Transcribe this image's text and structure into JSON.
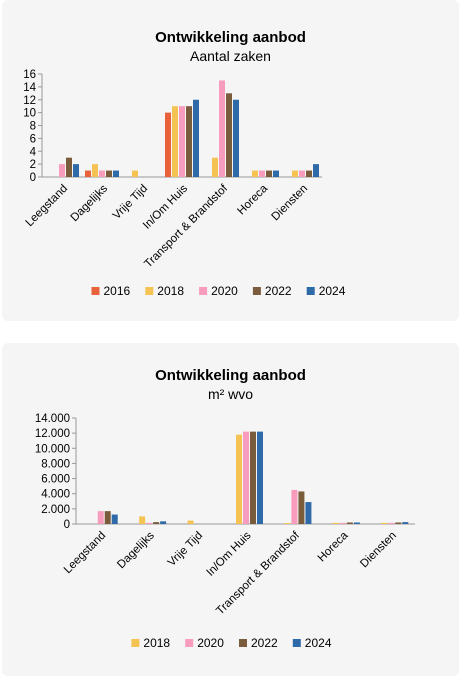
{
  "chart_data": [
    {
      "type": "bar",
      "title": "Ontwikkeling aanbod",
      "subtitle": "Aantal zaken",
      "categories": [
        "Leegstand",
        "Dagelijks",
        "Vrije Tijd",
        "In/Om Huis",
        "Transport & Brandstof",
        "Horeca",
        "Diensten"
      ],
      "series": [
        {
          "name": "2016",
          "color": "#e8613a",
          "values": [
            0,
            1,
            0,
            10,
            0,
            0,
            0
          ]
        },
        {
          "name": "2018",
          "color": "#f5c254",
          "values": [
            0,
            2,
            1,
            11,
            3,
            1,
            1
          ]
        },
        {
          "name": "2020",
          "color": "#f79cbc",
          "values": [
            2,
            1,
            0,
            11,
            15,
            1,
            1
          ]
        },
        {
          "name": "2022",
          "color": "#7a5c3c",
          "values": [
            3,
            1,
            0,
            11,
            13,
            1,
            1
          ]
        },
        {
          "name": "2024",
          "color": "#2e6aa8",
          "values": [
            2,
            1,
            0,
            12,
            12,
            1,
            2
          ]
        }
      ],
      "yticks": [
        "0",
        "2",
        "4",
        "6",
        "8",
        "10",
        "12",
        "14",
        "16"
      ],
      "ylim": [
        0,
        16
      ],
      "grid": false,
      "legend": "bottom"
    },
    {
      "type": "bar",
      "title": "Ontwikkeling aanbod",
      "subtitle": "m² wvo",
      "categories": [
        "Leegstand",
        "Dagelijks",
        "Vrije Tijd",
        "In/Om Huis",
        "Transport & Brandstof",
        "Horeca",
        "Diensten"
      ],
      "series": [
        {
          "name": "2018",
          "color": "#f5c254",
          "values": [
            0,
            1000,
            450,
            11800,
            120,
            150,
            150
          ]
        },
        {
          "name": "2020",
          "color": "#f79cbc",
          "values": [
            1700,
            150,
            0,
            12200,
            4500,
            150,
            150
          ]
        },
        {
          "name": "2022",
          "color": "#7a5c3c",
          "values": [
            1700,
            250,
            0,
            12200,
            4300,
            200,
            200
          ]
        },
        {
          "name": "2024",
          "color": "#2e6aa8",
          "values": [
            1250,
            350,
            0,
            12200,
            2900,
            200,
            250
          ]
        }
      ],
      "yticks": [
        "0",
        "2.000",
        "4.000",
        "6.000",
        "8.000",
        "10.000",
        "12.000",
        "14.000"
      ],
      "ylim": [
        0,
        14000
      ],
      "grid": false,
      "legend": "bottom"
    }
  ]
}
